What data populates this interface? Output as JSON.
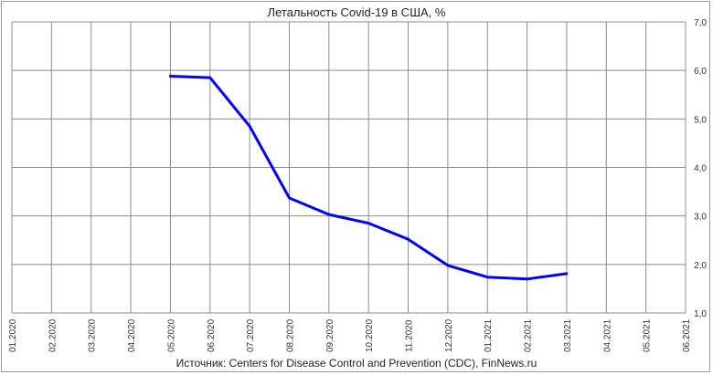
{
  "chart_data": {
    "type": "line",
    "title": "Летальность Covid-19 в США, %",
    "source": "Источник: Centers for Disease Control and Prevention (CDC), FinNews.ru",
    "x_labels": [
      "01.2020",
      "02.2020",
      "03.2020",
      "04.2020",
      "05.2020",
      "06.2020",
      "07.2020",
      "08.2020",
      "09.2020",
      "10.2020",
      "11.2020",
      "12.2020",
      "01.2021",
      "02.2021",
      "03.2021",
      "04.2021",
      "05.2021",
      "06.2021"
    ],
    "y_ticks": [
      "1,0",
      "2,0",
      "3,0",
      "4,0",
      "5,0",
      "6,0",
      "7,0"
    ],
    "ylim": [
      1.0,
      7.0
    ],
    "grid": true,
    "y_axis_side": "right",
    "series": [
      {
        "color": "#0000ff",
        "x": [
          "05.2020",
          "06.2020",
          "07.2020",
          "08.2020",
          "09.2020",
          "10.2020",
          "11.2020",
          "12.2020",
          "01.2021",
          "02.2021",
          "03.2021"
        ],
        "values": [
          5.88,
          5.85,
          4.85,
          3.37,
          3.03,
          2.85,
          2.52,
          1.98,
          1.74,
          1.7,
          1.81
        ]
      }
    ]
  }
}
